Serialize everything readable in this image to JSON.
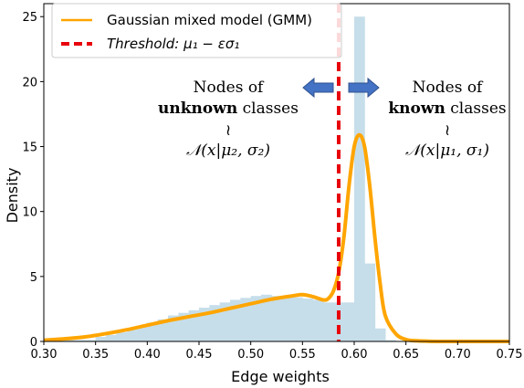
{
  "chart_data": {
    "type": "area",
    "xlabel": "Edge weights",
    "ylabel": "Density",
    "xlim": [
      0.3,
      0.75
    ],
    "ylim": [
      0,
      26
    ],
    "xticks": [
      "0.30",
      "0.35",
      "0.40",
      "0.45",
      "0.50",
      "0.55",
      "0.60",
      "0.65",
      "0.70",
      "0.75"
    ],
    "yticks": [
      "0",
      "5",
      "10",
      "15",
      "20",
      "25"
    ],
    "grid": false,
    "legend_position": "top-left",
    "legend": {
      "gmm_label": "Gaussian mixed model (GMM)",
      "threshold_label_text": "Threshold",
      "threshold_label_math": ": μ₁ − εσ₁"
    },
    "colors": {
      "gmm_curve": "#FFA500",
      "threshold": "#E8000B",
      "histogram": "#C6DEEA",
      "arrow": "#4472C4"
    },
    "threshold_x": 0.585,
    "histogram": {
      "edges": [
        0.3,
        0.35,
        0.36,
        0.37,
        0.38,
        0.39,
        0.4,
        0.41,
        0.42,
        0.43,
        0.44,
        0.45,
        0.46,
        0.47,
        0.48,
        0.49,
        0.5,
        0.51,
        0.52,
        0.53,
        0.54,
        0.55,
        0.56,
        0.57,
        0.6,
        0.61,
        0.62,
        0.63,
        0.64
      ],
      "values": [
        0.1,
        0.35,
        0.5,
        0.7,
        0.9,
        1.2,
        1.45,
        1.7,
        2.0,
        2.2,
        2.4,
        2.6,
        2.8,
        3.0,
        3.2,
        3.35,
        3.5,
        3.6,
        3.5,
        3.45,
        3.4,
        3.3,
        3.2,
        3.0,
        25.0,
        6.0,
        1.0,
        0.1
      ]
    },
    "series": [
      {
        "name": "Gaussian mixed model (GMM)",
        "x": [
          0.3,
          0.32,
          0.34,
          0.36,
          0.38,
          0.4,
          0.42,
          0.44,
          0.46,
          0.48,
          0.5,
          0.52,
          0.54,
          0.55,
          0.56,
          0.57,
          0.575,
          0.58,
          0.585,
          0.59,
          0.595,
          0.6,
          0.605,
          0.61,
          0.615,
          0.62,
          0.625,
          0.63,
          0.64,
          0.65,
          0.66,
          0.68,
          0.7,
          0.75
        ],
        "y": [
          0.1,
          0.2,
          0.35,
          0.6,
          0.9,
          1.25,
          1.6,
          1.9,
          2.2,
          2.55,
          2.9,
          3.25,
          3.5,
          3.6,
          3.45,
          3.2,
          3.3,
          3.9,
          5.3,
          8.0,
          12.0,
          15.0,
          15.9,
          15.0,
          12.0,
          8.0,
          4.5,
          2.0,
          0.6,
          0.15,
          0.05,
          0.0,
          0.0,
          0.0
        ]
      }
    ],
    "annotations": {
      "unknown": {
        "line1": "Nodes of",
        "bold": "unknown",
        "rest": " classes",
        "tilde": "≀",
        "formula": "𝒩(x|μ₂, σ₂)"
      },
      "known": {
        "line1": "Nodes of",
        "bold": "known",
        "rest": " classes",
        "tilde": "≀",
        "formula": "𝒩(x|μ₁, σ₁)"
      }
    }
  }
}
